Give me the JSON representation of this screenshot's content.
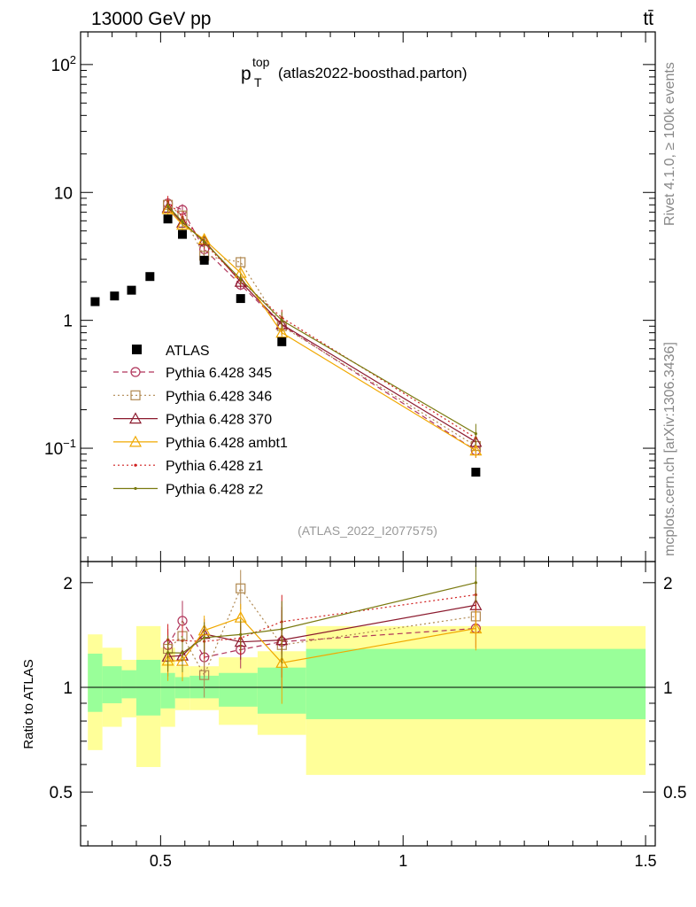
{
  "header": {
    "left": "13000 GeV pp",
    "right": "tt̄"
  },
  "side": {
    "rivet": "Rivet 4.1.0, ≥ 100k events",
    "mcplots": "mcplots.cern.ch [arXiv:1306.3436]"
  },
  "chart_data": {
    "type": "line",
    "title": {
      "main": "p",
      "sub": "T",
      "sup": "top",
      "tag": "(atlas2022-boosthad.parton)"
    },
    "analysis_label": "(ATLAS_2022_I2077575)",
    "ratio_ylabel": "Ratio to ATLAS",
    "x_ticks": [
      {
        "value": 0.5,
        "label": "0.5"
      },
      {
        "value": 1,
        "label": "1"
      },
      {
        "value": 1.5,
        "label": "1.5"
      }
    ],
    "main_y_ticks": [
      {
        "value": 0.1,
        "base": "10",
        "exp": "−1"
      },
      {
        "value": 1,
        "base": "1",
        "exp": ""
      },
      {
        "value": 10,
        "base": "10",
        "exp": ""
      },
      {
        "value": 100,
        "base": "10",
        "exp": "2"
      }
    ],
    "ratio_y_ticks": [
      {
        "value": 0.5,
        "label": "0.5"
      },
      {
        "value": 1,
        "label": "1"
      },
      {
        "value": 2,
        "label": "2"
      }
    ],
    "xlim": [
      0.335,
      1.52
    ],
    "ylim_main": [
      0.013,
      180
    ],
    "ylim_ratio": [
      0.35,
      2.3
    ],
    "reference": {
      "name": "ATLAS",
      "color": "#000000",
      "x": [
        0.365,
        0.405,
        0.44,
        0.478,
        0.515,
        0.545,
        0.59,
        0.665,
        0.75,
        1.15
      ],
      "y": [
        1.4,
        1.55,
        1.72,
        2.2,
        6.2,
        4.7,
        2.95,
        1.48,
        0.68,
        0.065
      ]
    },
    "bands": [
      {
        "x1": 0.35,
        "x2": 0.38,
        "y_in": [
          0.85,
          1.25
        ],
        "y_out": [
          0.66,
          1.42
        ]
      },
      {
        "x1": 0.38,
        "x2": 0.42,
        "y_in": [
          0.9,
          1.15
        ],
        "y_out": [
          0.77,
          1.3
        ]
      },
      {
        "x1": 0.42,
        "x2": 0.45,
        "y_in": [
          0.93,
          1.12
        ],
        "y_out": [
          0.82,
          1.2
        ]
      },
      {
        "x1": 0.45,
        "x2": 0.5,
        "y_in": [
          0.83,
          1.2
        ],
        "y_out": [
          0.59,
          1.5
        ]
      },
      {
        "x1": 0.5,
        "x2": 0.53,
        "y_in": [
          0.87,
          1.1
        ],
        "y_out": [
          0.77,
          1.3
        ]
      },
      {
        "x1": 0.53,
        "x2": 0.56,
        "y_in": [
          0.93,
          1.07
        ],
        "y_out": [
          0.86,
          1.15
        ]
      },
      {
        "x1": 0.56,
        "x2": 0.62,
        "y_in": [
          0.93,
          1.08
        ],
        "y_out": [
          0.86,
          1.15
        ]
      },
      {
        "x1": 0.62,
        "x2": 0.7,
        "y_in": [
          0.88,
          1.1
        ],
        "y_out": [
          0.78,
          1.22
        ]
      },
      {
        "x1": 0.7,
        "x2": 0.8,
        "y_in": [
          0.84,
          1.14
        ],
        "y_out": [
          0.73,
          1.27
        ]
      },
      {
        "x1": 0.8,
        "x2": 1.5,
        "y_in": [
          0.81,
          1.29
        ],
        "y_out": [
          0.56,
          1.5
        ]
      }
    ],
    "band_colors": {
      "inner": "#99ff99",
      "outer": "#ffff99"
    },
    "series": [
      {
        "name": "Pythia 6.428 345",
        "color": "#b0345a",
        "dash": "6,4",
        "marker": "circle",
        "x": [
          0.515,
          0.545,
          0.59,
          0.665,
          0.75,
          1.15
        ],
        "y": [
          8.2,
          7.3,
          3.6,
          1.9,
          0.92,
          0.096
        ],
        "err": [
          0.9,
          0.8,
          0.35,
          0.18,
          0.15,
          0.012
        ],
        "ratio_err": [
          0.15,
          0.22,
          0.15,
          0.15,
          0.35,
          0.18
        ]
      },
      {
        "name": "Pythia 6.428 346",
        "color": "#b08850",
        "dash": "2,3",
        "marker": "square",
        "x": [
          0.515,
          0.545,
          0.59,
          0.665,
          0.75,
          1.15
        ],
        "y": [
          8.0,
          6.6,
          3.2,
          2.85,
          0.9,
          0.104
        ],
        "err": [
          0.8,
          0.7,
          0.3,
          0.3,
          0.14,
          0.012
        ],
        "ratio_err": [
          0.15,
          0.15,
          0.15,
          0.25,
          0.3,
          0.18
        ]
      },
      {
        "name": "Pythia 6.428 370",
        "color": "#8b1a2e",
        "dash": "",
        "marker": "triangle",
        "x": [
          0.515,
          0.545,
          0.59,
          0.665,
          0.75,
          1.15
        ],
        "y": [
          7.6,
          5.8,
          4.2,
          2.0,
          0.93,
          0.112
        ],
        "err": [
          0.8,
          0.6,
          0.4,
          0.2,
          0.15,
          0.013
        ],
        "ratio_err": [
          0.15,
          0.15,
          0.15,
          0.15,
          0.3,
          0.18
        ]
      },
      {
        "name": "Pythia 6.428 ambt1",
        "color": "#f0a800",
        "dash": "",
        "marker": "triangle",
        "x": [
          0.515,
          0.545,
          0.59,
          0.665,
          0.75,
          1.15
        ],
        "y": [
          7.4,
          5.6,
          4.3,
          2.35,
          0.8,
          0.096
        ],
        "err": [
          0.8,
          0.6,
          0.4,
          0.25,
          0.14,
          0.012
        ],
        "ratio_err": [
          0.15,
          0.15,
          0.15,
          0.15,
          0.28,
          0.2
        ]
      },
      {
        "name": "Pythia 6.428 z1",
        "color": "#d02020",
        "dash": "2,3",
        "marker": "dot",
        "x": [
          0.515,
          0.545,
          0.59,
          0.665,
          0.75,
          1.15
        ],
        "y": [
          8.5,
          6.4,
          4.0,
          2.05,
          1.05,
          0.12
        ],
        "err": [
          0.9,
          0.7,
          0.4,
          0.2,
          0.16,
          0.014
        ],
        "ratio_err": [
          0.15,
          0.15,
          0.15,
          0.15,
          0.3,
          0.18
        ]
      },
      {
        "name": "Pythia 6.428 z2",
        "color": "#7a7a10",
        "dash": "",
        "marker": "dot",
        "x": [
          0.515,
          0.545,
          0.59,
          0.665,
          0.75,
          1.15
        ],
        "y": [
          7.8,
          5.9,
          4.1,
          2.1,
          1.0,
          0.13
        ],
        "err": [
          0.8,
          0.6,
          0.4,
          0.2,
          0.16,
          0.025
        ],
        "ratio_err": [
          0.15,
          0.15,
          0.15,
          0.15,
          0.3,
          0.25
        ]
      }
    ]
  }
}
